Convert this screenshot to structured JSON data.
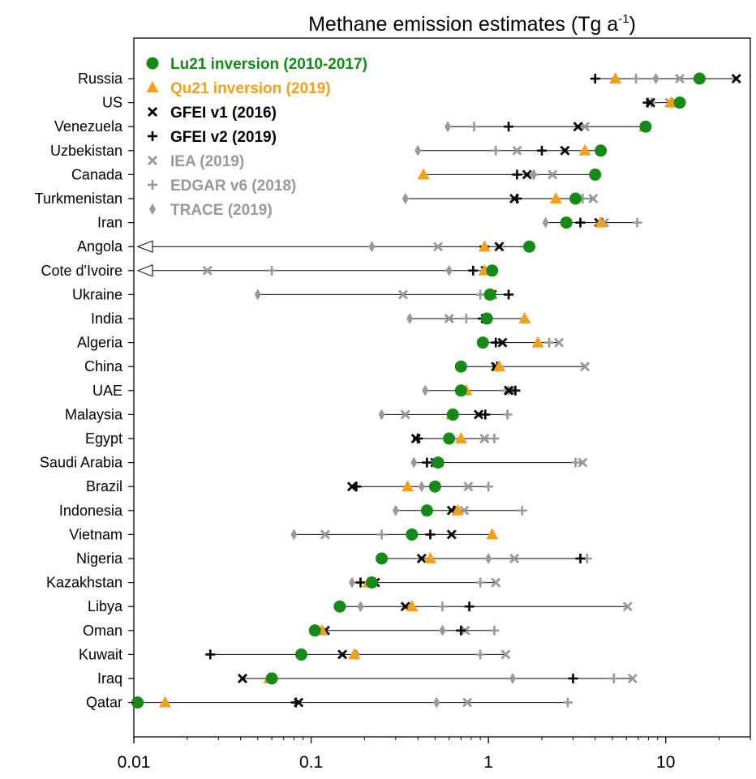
{
  "chart_data": {
    "type": "scatter",
    "title": "Methane emission estimates (Tg a",
    "title_sup": "-1",
    "title_close": ")",
    "x_scale": "log",
    "xlim": [
      0.01,
      30
    ],
    "x_ticks": [
      {
        "value": 0.01,
        "label": "0.01"
      },
      {
        "value": 0.1,
        "label": "0.1"
      },
      {
        "value": 1,
        "label": "1"
      },
      {
        "value": 10,
        "label": "10"
      }
    ],
    "legend_position": "top-left",
    "categories": [
      "Russia",
      "US",
      "Venezuela",
      "Uzbekistan",
      "Canada",
      "Turkmenistan",
      "Iran",
      "Angola",
      "Cote d'Ivoire",
      "Ukraine",
      "India",
      "Algeria",
      "China",
      "UAE",
      "Malaysia",
      "Egypt",
      "Saudi Arabia",
      "Brazil",
      "Indonesia",
      "Vietnam",
      "Nigeria",
      "Kazakhstan",
      "Libya",
      "Oman",
      "Kuwait",
      "Iraq",
      "Qatar"
    ],
    "off_axis_left": [
      "Angola",
      "Cote d'Ivoire"
    ],
    "series": [
      {
        "name": "Lu21 inversion (2010-2017)",
        "marker": "circle",
        "color": "#168a16",
        "values": [
          15.5,
          12,
          7.7,
          4.3,
          4.0,
          3.1,
          2.75,
          1.7,
          1.05,
          1.02,
          0.98,
          0.93,
          0.7,
          0.7,
          0.63,
          0.6,
          0.52,
          0.5,
          0.45,
          0.37,
          0.25,
          0.22,
          0.145,
          0.105,
          0.088,
          0.06,
          0.0105
        ]
      },
      {
        "name": "Qu21 inversion (2019)",
        "marker": "triangle",
        "color": "#f5a01a",
        "values": [
          5.2,
          10.7,
          7.6,
          3.5,
          0.43,
          2.4,
          4.3,
          0.95,
          0.95,
          1.03,
          1.6,
          1.9,
          1.15,
          0.75,
          0.62,
          0.7,
          0.52,
          0.35,
          0.67,
          1.05,
          0.47,
          0.21,
          0.37,
          0.115,
          0.175,
          0.058,
          0.015
        ]
      },
      {
        "name": "GFEI v1 (2016)",
        "marker": "x",
        "color": "#000000",
        "values": [
          25,
          8.2,
          3.2,
          2.7,
          1.65,
          1.4,
          4.2,
          1.15,
          0.96,
          1.05,
          0.96,
          1.2,
          1.1,
          1.3,
          0.88,
          0.39,
          0.5,
          0.17,
          0.62,
          0.62,
          0.42,
          0.23,
          0.34,
          0.12,
          0.15,
          0.041,
          0.085
        ]
      },
      {
        "name": "GFEI v2 (2019)",
        "marker": "plus",
        "color": "#000000",
        "values": [
          4.0,
          7.9,
          1.3,
          2.0,
          1.45,
          1.45,
          3.3,
          0.95,
          0.82,
          1.3,
          0.93,
          1.1,
          1.12,
          1.42,
          0.96,
          0.4,
          0.45,
          0.18,
          0.64,
          0.47,
          3.3,
          0.19,
          0.78,
          0.7,
          0.027,
          3.0,
          0.082
        ]
      },
      {
        "name": "IEA (2019)",
        "marker": "x",
        "color": "#999999",
        "values": [
          12.0,
          10.5,
          3.5,
          1.45,
          2.3,
          3.9,
          4.5,
          0.52,
          0.026,
          0.33,
          0.6,
          2.5,
          3.5,
          1.35,
          0.34,
          0.95,
          3.4,
          0.77,
          0.73,
          0.12,
          1.4,
          1.1,
          6.1,
          0.74,
          1.25,
          6.5,
          0.76
        ]
      },
      {
        "name": "EDGAR v6 (2018)",
        "marker": "plus",
        "color": "#999999",
        "values": [
          6.8,
          8.3,
          0.83,
          1.1,
          1.8,
          3.4,
          6.9,
          0.95,
          0.06,
          0.9,
          0.75,
          2.2,
          1.15,
          1.25,
          1.28,
          1.08,
          3.1,
          1.0,
          1.55,
          0.25,
          3.6,
          0.9,
          0.55,
          1.08,
          0.9,
          5.1,
          2.8
        ]
      },
      {
        "name": "TRACE (2019)",
        "marker": "diamond",
        "color": "#999999",
        "values": [
          8.8,
          10.9,
          0.59,
          0.4,
          1.8,
          0.34,
          2.1,
          0.22,
          0.6,
          0.05,
          0.36,
          0.96,
          0.7,
          0.44,
          0.25,
          0.4,
          0.38,
          0.42,
          0.3,
          0.08,
          1.0,
          0.17,
          0.19,
          0.55,
          0.18,
          1.37,
          0.51
        ]
      }
    ]
  }
}
